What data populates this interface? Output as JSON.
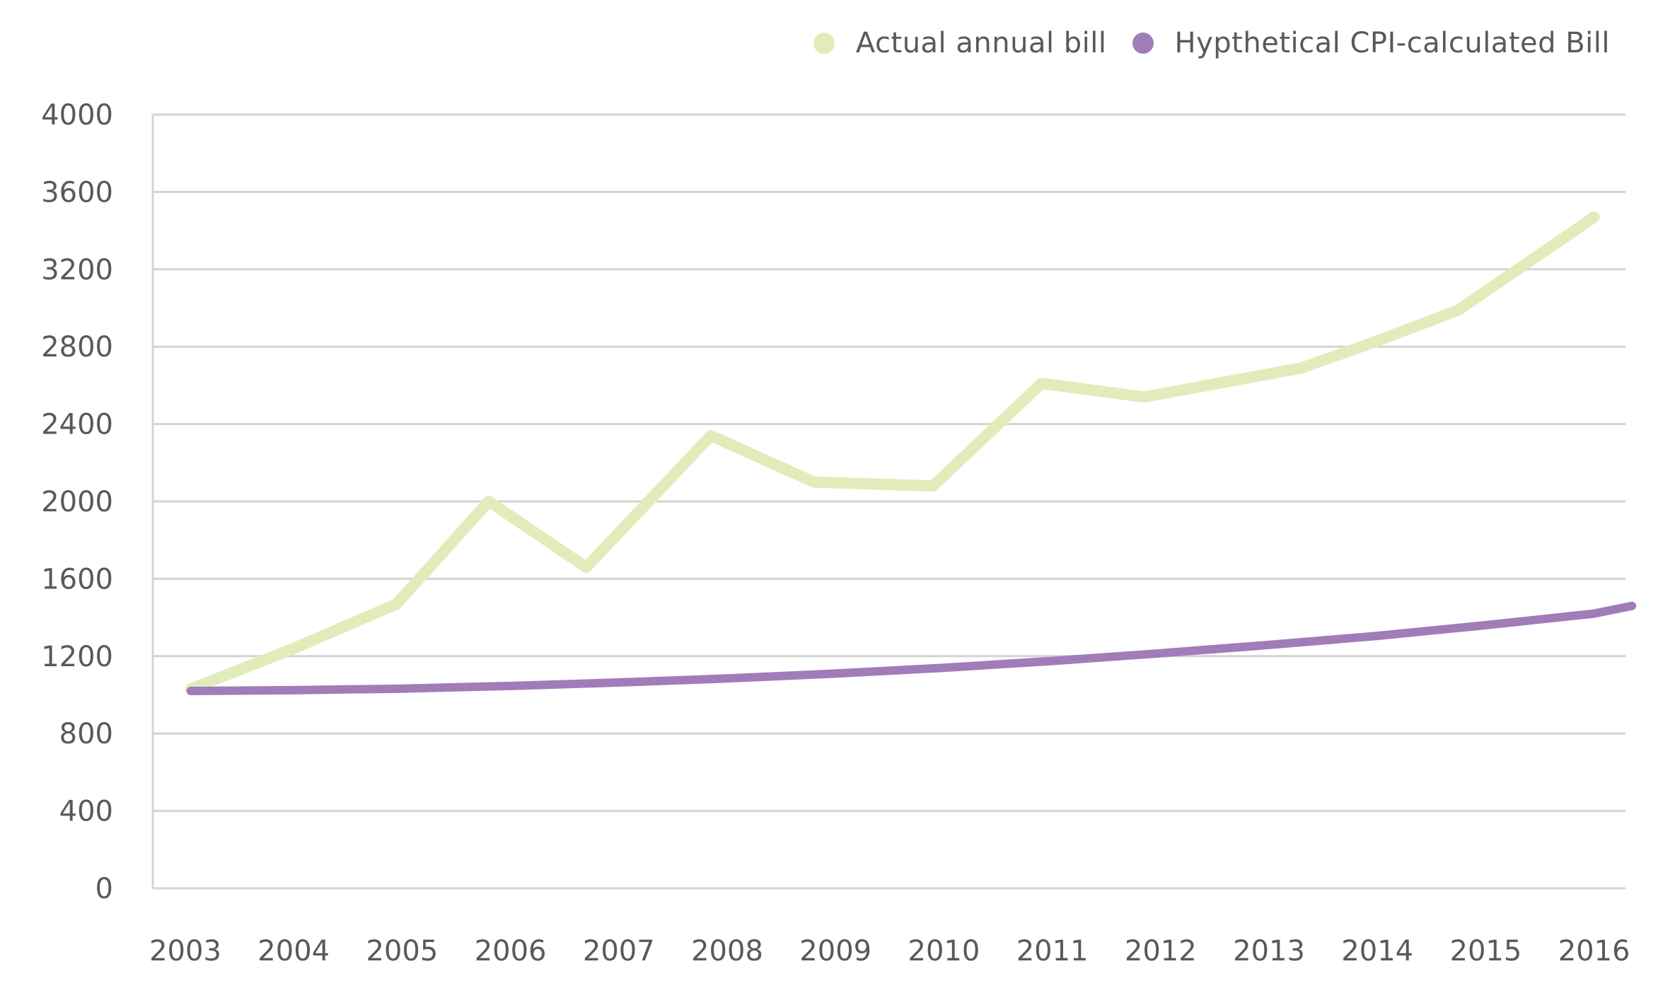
{
  "chart_data": {
    "type": "line",
    "categories": [
      "2003",
      "2004",
      "2005",
      "2006",
      "2007",
      "2008",
      "2009",
      "2010",
      "2011",
      "2012",
      "2013",
      "2014",
      "2015",
      "2016"
    ],
    "ylim": [
      0,
      4000
    ],
    "yticks": [
      0,
      400,
      800,
      1200,
      1600,
      2000,
      2400,
      2800,
      3200,
      3600,
      4000
    ],
    "grid": true,
    "legend_position": "top-right",
    "series": [
      {
        "name": "Actual annual bill",
        "color": "#e2ecbb",
        "points": [
          {
            "x": 2003.05,
            "y": 1030
          },
          {
            "x": 2004.0,
            "y": 1240
          },
          {
            "x": 2004.95,
            "y": 1470
          },
          {
            "x": 2005.8,
            "y": 2000
          },
          {
            "x": 2006.7,
            "y": 1660
          },
          {
            "x": 2007.85,
            "y": 2340
          },
          {
            "x": 2008.8,
            "y": 2100
          },
          {
            "x": 2009.9,
            "y": 2080
          },
          {
            "x": 2010.9,
            "y": 2610
          },
          {
            "x": 2011.85,
            "y": 2540
          },
          {
            "x": 2013.3,
            "y": 2690
          },
          {
            "x": 2014.0,
            "y": 2830
          },
          {
            "x": 2014.75,
            "y": 2990
          },
          {
            "x": 2016.0,
            "y": 3470
          }
        ]
      },
      {
        "name": "Hypthetical CPI-calculated Bill",
        "color": "#a07db8",
        "points": [
          {
            "x": 2003.05,
            "y": 1020
          },
          {
            "x": 2004.0,
            "y": 1024
          },
          {
            "x": 2005.0,
            "y": 1032
          },
          {
            "x": 2006.0,
            "y": 1046
          },
          {
            "x": 2007.0,
            "y": 1064
          },
          {
            "x": 2008.0,
            "y": 1085
          },
          {
            "x": 2009.0,
            "y": 1110
          },
          {
            "x": 2010.0,
            "y": 1140
          },
          {
            "x": 2011.0,
            "y": 1175
          },
          {
            "x": 2012.0,
            "y": 1215
          },
          {
            "x": 2013.0,
            "y": 1258
          },
          {
            "x": 2014.0,
            "y": 1305
          },
          {
            "x": 2015.0,
            "y": 1360
          },
          {
            "x": 2016.0,
            "y": 1420
          },
          {
            "x": 2016.35,
            "y": 1460
          }
        ]
      }
    ]
  },
  "legend": {
    "items": [
      {
        "label": "Actual annual bill",
        "color": "#e2ecbb"
      },
      {
        "label": "Hypthetical CPI-calculated Bill",
        "color": "#a07db8"
      }
    ]
  }
}
